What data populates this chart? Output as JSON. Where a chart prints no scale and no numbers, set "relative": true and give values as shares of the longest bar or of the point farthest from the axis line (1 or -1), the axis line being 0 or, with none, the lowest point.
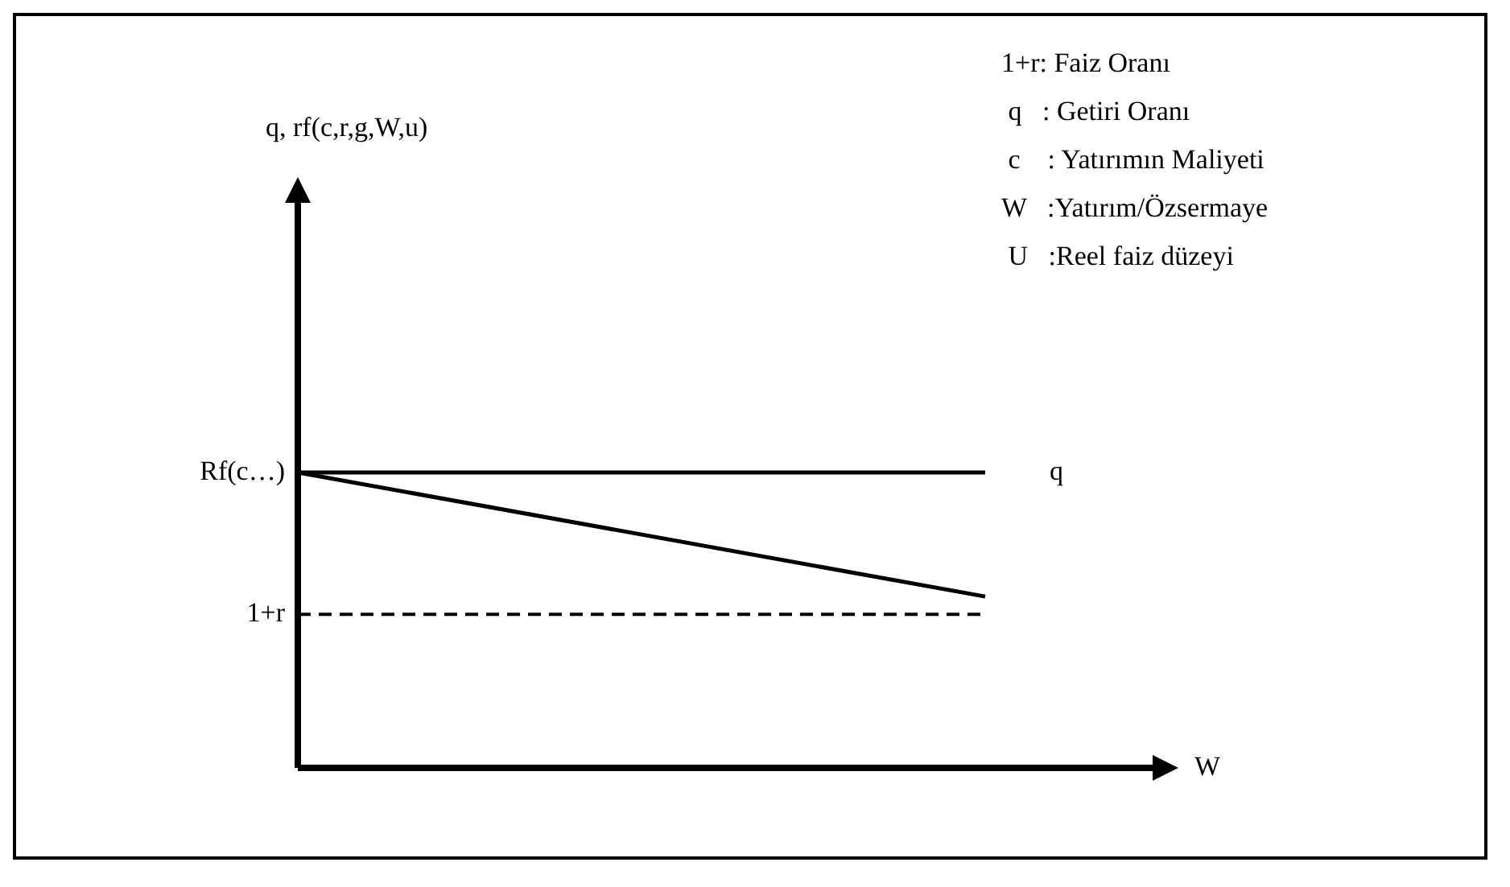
{
  "chart_data": {
    "type": "line",
    "relative": true,
    "xlabel": "W",
    "categories": [
      null,
      null
    ],
    "series": [
      {
        "name": "q",
        "color": "#000000",
        "values": [
          1,
          1
        ]
      },
      {
        "color": "#000000",
        "values": [
          1,
          0.58
        ]
      }
    ],
    "ref_lines": [
      {
        "axis": "y",
        "value": 0.52,
        "label": "1+r",
        "color": "#000000",
        "line_style": "dashed"
      }
    ],
    "annotations": [
      "Rf(c…)",
      "q, rf(c,r,g,W,u)",
      "1+r: Faiz Oranı",
      " q   : Getiri Oranı",
      " c    : Yatırımın Maliyeti",
      "W   :Yatırım/Özsermaye",
      " U   :Reel faiz düzeyi"
    ],
    "marker": "none",
    "line_style": "solid",
    "legend": false
  }
}
